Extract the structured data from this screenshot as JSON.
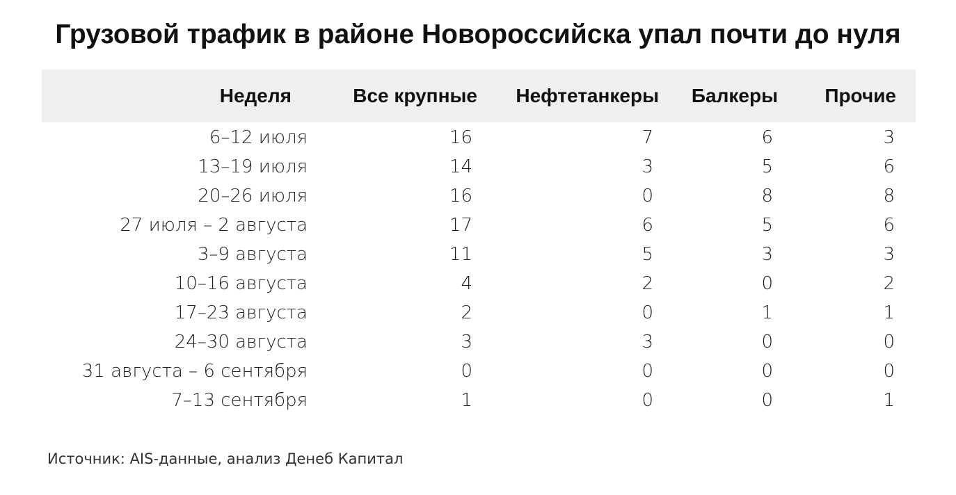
{
  "header": {
    "title": "Грузовой трафик в районе Новороссийска упал почти до нуля"
  },
  "table": {
    "columns": [
      "Неделя",
      "Все крупные",
      "Нефтетанкеры",
      "Балкеры",
      "Прочие"
    ],
    "rows": [
      [
        "6–12 июля",
        16,
        7,
        6,
        3
      ],
      [
        "13–19 июля",
        14,
        3,
        5,
        6
      ],
      [
        "20–26 июля",
        16,
        0,
        8,
        8
      ],
      [
        "27 июля – 2 августа",
        17,
        6,
        5,
        6
      ],
      [
        "3–9 августа",
        11,
        5,
        3,
        3
      ],
      [
        "10–16 августа",
        4,
        2,
        0,
        2
      ],
      [
        "17–23 августа",
        2,
        0,
        1,
        1
      ],
      [
        "24–30 августа",
        3,
        3,
        0,
        0
      ],
      [
        "31 августа – 6 сентября",
        0,
        0,
        0,
        0
      ],
      [
        "7–13 сентября",
        1,
        0,
        0,
        1
      ]
    ]
  },
  "footer": {
    "source": "Источник: AIS-данные, анализ Денеб Капитал"
  }
}
